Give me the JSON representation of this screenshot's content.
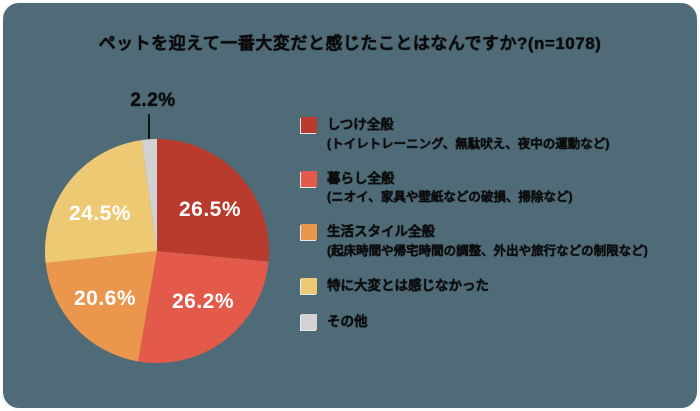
{
  "window": {
    "background_color": "#4F6B77",
    "frame_color": "#FFFFFF"
  },
  "chart_data": {
    "type": "pie",
    "title": "ペットを迎えて一番大変だと感じたことはなんですか?(n=1078)",
    "sample_size": "n=1078",
    "categories": [
      "しつけ全般",
      "暮らし全般",
      "生活スタイル全般",
      "特に大変とは感じなかった",
      "その他"
    ],
    "values": [
      26.5,
      26.2,
      20.6,
      24.5,
      2.2
    ],
    "unit": "%",
    "slice_labels": [
      "26.5%",
      "26.2%",
      "20.6%",
      "24.5%",
      "2.2%"
    ],
    "colors": [
      "#B83B2E",
      "#E35A4A",
      "#EB964D",
      "#EEC973",
      "#D2D2D2"
    ],
    "start_angle": "top",
    "direction": "clockwise",
    "legend_position": "right",
    "legend": [
      {
        "label": "しつけ全般",
        "description": "(トイレトレーニング、無駄吠え、夜中の運動など)"
      },
      {
        "label": "暮らし全般",
        "description": "(ニオイ、家具や壁紙などの破損、掃除など)"
      },
      {
        "label": "生活スタイル全般",
        "description": "(起床時間や帰宅時間の調整、外出や旅行などの制限など)"
      },
      {
        "label": "特に大変とは感じなかった",
        "description": ""
      },
      {
        "label": "その他",
        "description": ""
      }
    ]
  }
}
